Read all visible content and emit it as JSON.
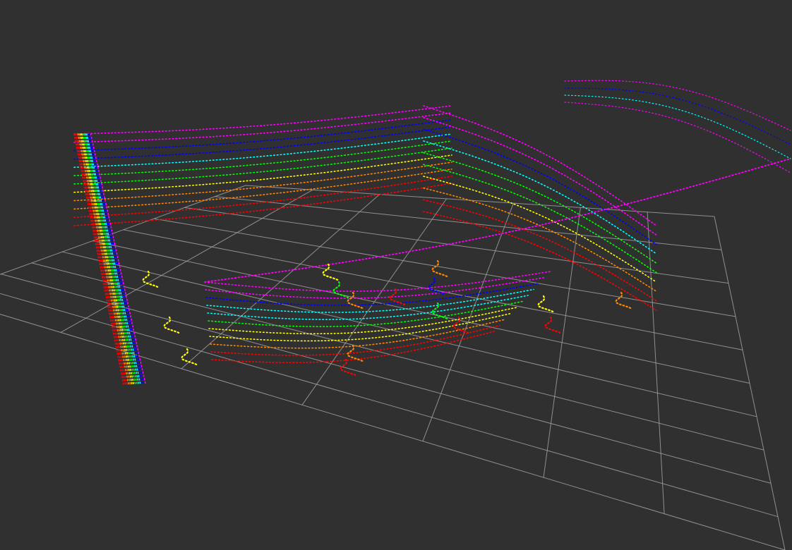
{
  "viewport": {
    "background_color": "#303030",
    "grid_color": "#a0a0a0",
    "colormap": [
      "#ff0000",
      "#ff8800",
      "#ffff00",
      "#00ff00",
      "#00ffff",
      "#0000ff",
      "#ff00ff"
    ]
  }
}
